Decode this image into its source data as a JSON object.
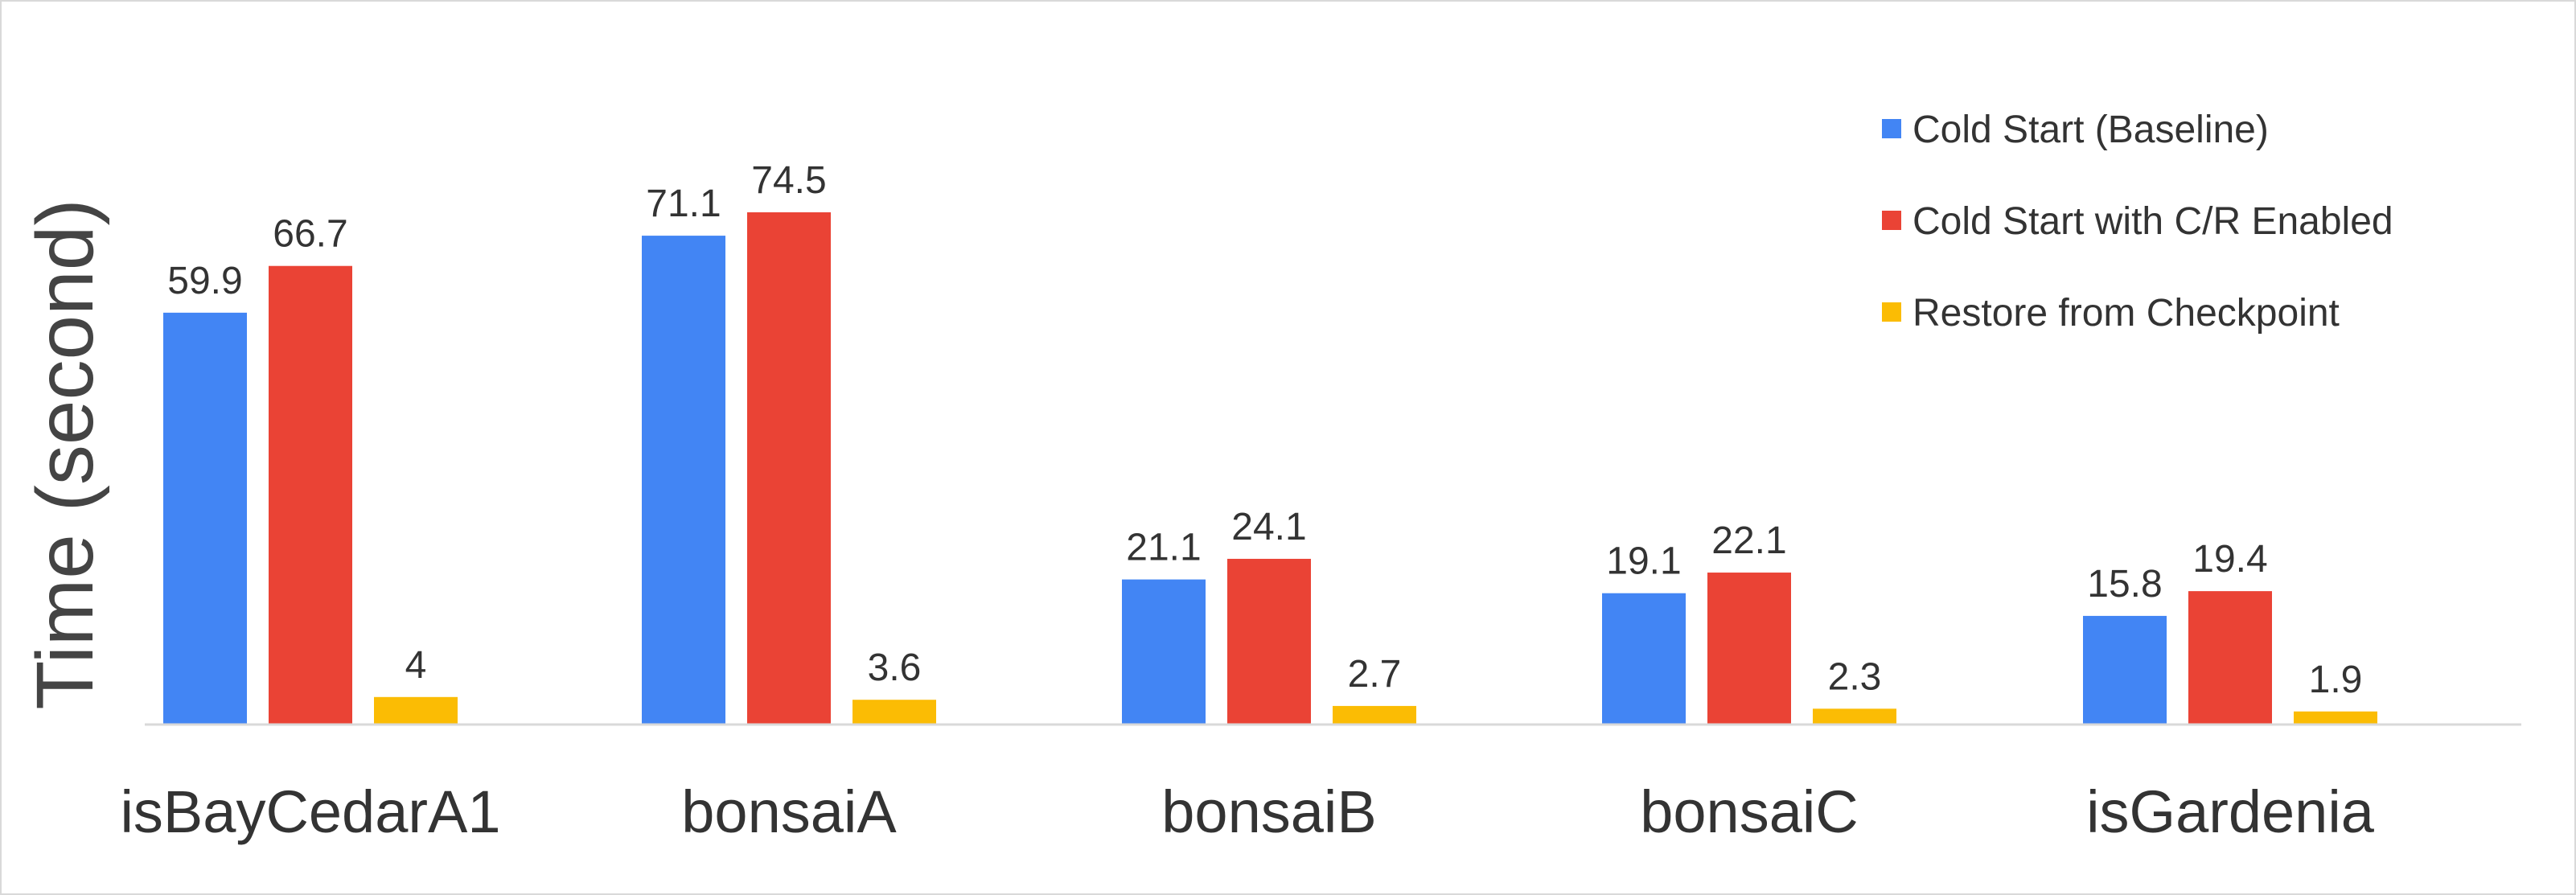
{
  "chart_data": {
    "type": "bar",
    "title": "",
    "xlabel": "",
    "ylabel": "Time (second)",
    "categories": [
      "isBayCedarA1",
      "bonsaiA",
      "bonsaiB",
      "bonsaiC",
      "isGardenia"
    ],
    "series": [
      {
        "name": "Cold Start (Baseline)",
        "color": "#4285F4",
        "values": [
          59.9,
          71.1,
          21.1,
          19.1,
          15.8
        ]
      },
      {
        "name": "Cold Start with C/R Enabled",
        "color": "#EA4335",
        "values": [
          66.7,
          74.5,
          24.1,
          22.1,
          19.4
        ]
      },
      {
        "name": "Restore from Checkpoint",
        "color": "#FBBC04",
        "values": [
          4,
          3.6,
          2.7,
          2.3,
          1.9
        ]
      }
    ],
    "ylim": [
      0,
      100
    ],
    "grid": false,
    "legend_position": "top-right",
    "data_labels": true
  }
}
